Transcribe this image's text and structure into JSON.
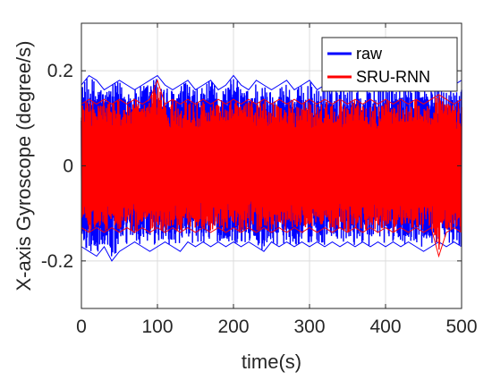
{
  "chart_data": {
    "type": "line",
    "title": "",
    "xlabel": "time(s)",
    "ylabel": "X-axis Gyroscope (degree/s)",
    "xlim": [
      0,
      500
    ],
    "ylim": [
      -0.3,
      0.3
    ],
    "xticks": [
      0,
      100,
      200,
      300,
      400,
      500
    ],
    "xtick_labels": [
      "0",
      "100",
      "200",
      "300",
      "400",
      "500"
    ],
    "yticks": [
      -0.2,
      0,
      0.2
    ],
    "ytick_labels": [
      "-0.2",
      "0",
      "0.2"
    ],
    "grid": true,
    "legend_position": "top-right",
    "series": [
      {
        "name": "raw",
        "color": "#0000ff",
        "description_min": -0.2,
        "description_max": 0.2,
        "x": [
          0,
          10,
          20,
          30,
          40,
          50,
          60,
          70,
          80,
          90,
          100,
          110,
          120,
          130,
          140,
          150,
          160,
          170,
          180,
          190,
          200,
          210,
          220,
          230,
          240,
          250,
          260,
          270,
          280,
          290,
          300,
          310,
          320,
          330,
          340,
          350,
          360,
          370,
          380,
          390,
          400,
          410,
          420,
          430,
          440,
          450,
          460,
          470,
          480,
          490,
          500
        ],
        "upper": [
          0.17,
          0.19,
          0.18,
          0.16,
          0.17,
          0.18,
          0.17,
          0.16,
          0.17,
          0.18,
          0.19,
          0.17,
          0.16,
          0.17,
          0.18,
          0.16,
          0.17,
          0.18,
          0.16,
          0.17,
          0.19,
          0.17,
          0.16,
          0.18,
          0.17,
          0.16,
          0.17,
          0.18,
          0.16,
          0.17,
          0.18,
          0.16,
          0.17,
          0.16,
          0.17,
          0.18,
          0.17,
          0.16,
          0.17,
          0.16,
          0.17,
          0.18,
          0.16,
          0.17,
          0.18,
          0.17,
          0.16,
          0.17,
          0.16,
          0.17,
          0.18
        ],
        "lower": [
          -0.17,
          -0.18,
          -0.19,
          -0.17,
          -0.2,
          -0.18,
          -0.17,
          -0.16,
          -0.17,
          -0.18,
          -0.17,
          -0.16,
          -0.17,
          -0.18,
          -0.16,
          -0.17,
          -0.16,
          -0.17,
          -0.16,
          -0.17,
          -0.16,
          -0.17,
          -0.16,
          -0.17,
          -0.18,
          -0.16,
          -0.17,
          -0.16,
          -0.17,
          -0.16,
          -0.17,
          -0.16,
          -0.17,
          -0.16,
          -0.17,
          -0.16,
          -0.17,
          -0.16,
          -0.17,
          -0.16,
          -0.17,
          -0.16,
          -0.17,
          -0.16,
          -0.17,
          -0.18,
          -0.17,
          -0.16,
          -0.17,
          -0.16,
          -0.17
        ]
      },
      {
        "name": "SRU-RNN",
        "color": "#ff0000",
        "x": [
          0,
          10,
          20,
          30,
          40,
          50,
          60,
          70,
          80,
          90,
          100,
          110,
          120,
          130,
          140,
          150,
          160,
          170,
          180,
          190,
          200,
          210,
          220,
          230,
          240,
          250,
          260,
          270,
          280,
          290,
          300,
          310,
          320,
          330,
          340,
          350,
          360,
          370,
          380,
          390,
          400,
          410,
          420,
          430,
          440,
          450,
          460,
          470,
          480,
          490,
          500
        ],
        "upper": [
          0.13,
          0.14,
          0.13,
          0.14,
          0.13,
          0.14,
          0.13,
          0.14,
          0.13,
          0.14,
          0.18,
          0.13,
          0.14,
          0.13,
          0.14,
          0.13,
          0.14,
          0.13,
          0.14,
          0.13,
          0.14,
          0.13,
          0.14,
          0.13,
          0.14,
          0.13,
          0.14,
          0.13,
          0.14,
          0.13,
          0.14,
          0.13,
          0.14,
          0.13,
          0.14,
          0.13,
          0.14,
          0.13,
          0.14,
          0.13,
          0.14,
          0.13,
          0.14,
          0.13,
          0.14,
          0.13,
          0.14,
          0.15,
          0.14,
          0.13,
          0.14
        ],
        "lower": [
          -0.13,
          -0.14,
          -0.13,
          -0.14,
          -0.13,
          -0.14,
          -0.13,
          -0.14,
          -0.13,
          -0.14,
          -0.13,
          -0.14,
          -0.13,
          -0.14,
          -0.13,
          -0.14,
          -0.13,
          -0.14,
          -0.13,
          -0.14,
          -0.13,
          -0.14,
          -0.13,
          -0.14,
          -0.13,
          -0.14,
          -0.13,
          -0.14,
          -0.13,
          -0.14,
          -0.13,
          -0.14,
          -0.13,
          -0.14,
          -0.13,
          -0.14,
          -0.13,
          -0.14,
          -0.13,
          -0.14,
          -0.13,
          -0.14,
          -0.13,
          -0.14,
          -0.13,
          -0.14,
          -0.13,
          -0.19,
          -0.14,
          -0.13,
          -0.14
        ]
      }
    ]
  }
}
